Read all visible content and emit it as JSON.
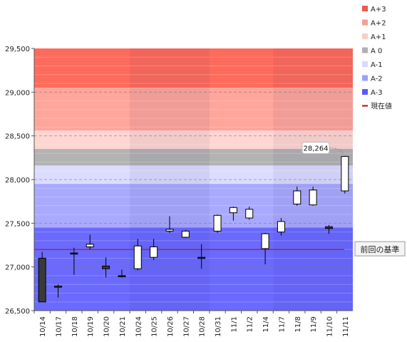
{
  "chart_data": {
    "type": "candlestick",
    "categories": [
      "10/14",
      "10/17",
      "10/18",
      "10/19",
      "10/20",
      "10/21",
      "10/24",
      "10/25",
      "10/26",
      "10/27",
      "10/28",
      "10/31",
      "11/1",
      "11/2",
      "11/4",
      "11/7",
      "11/8",
      "11/9",
      "11/10",
      "11/11"
    ],
    "ohlc": [
      {
        "open": 27100,
        "high": 27170,
        "low": 26600,
        "close": 26600
      },
      {
        "open": 26780,
        "high": 26800,
        "low": 26650,
        "close": 26770
      },
      {
        "open": 27160,
        "high": 27220,
        "low": 26910,
        "close": 27150
      },
      {
        "open": 27230,
        "high": 27370,
        "low": 27200,
        "close": 27260
      },
      {
        "open": 27010,
        "high": 27110,
        "low": 26880,
        "close": 26980
      },
      {
        "open": 26900,
        "high": 26970,
        "low": 26880,
        "close": 26890
      },
      {
        "open": 26980,
        "high": 27320,
        "low": 26960,
        "close": 27240
      },
      {
        "open": 27110,
        "high": 27320,
        "low": 27080,
        "close": 27230
      },
      {
        "open": 27410,
        "high": 27580,
        "low": 27390,
        "close": 27430
      },
      {
        "open": 27340,
        "high": 27420,
        "low": 27330,
        "close": 27410
      },
      {
        "open": 27110,
        "high": 27260,
        "low": 26980,
        "close": 27100
      },
      {
        "open": 27410,
        "high": 27600,
        "low": 27390,
        "close": 27590
      },
      {
        "open": 27620,
        "high": 27690,
        "low": 27530,
        "close": 27680
      },
      {
        "open": 27560,
        "high": 27690,
        "low": 27540,
        "close": 27660
      },
      {
        "open": 27210,
        "high": 27390,
        "low": 27030,
        "close": 27380
      },
      {
        "open": 27400,
        "high": 27560,
        "low": 27360,
        "close": 27520
      },
      {
        "open": 27720,
        "high": 27920,
        "low": 27700,
        "close": 27870
      },
      {
        "open": 27710,
        "high": 27920,
        "low": 27700,
        "close": 27880
      },
      {
        "open": 27460,
        "high": 27480,
        "low": 27380,
        "close": 27440
      },
      {
        "open": 27870,
        "high": 28270,
        "low": 27840,
        "close": 28264
      }
    ],
    "ylim": [
      26500,
      29500
    ],
    "yticks": [
      26500,
      27000,
      27500,
      28000,
      28500,
      29000,
      29500
    ],
    "ytick_labels": [
      "26,500",
      "27,000",
      "27,500",
      "28,000",
      "28,500",
      "29,000",
      "29,500"
    ],
    "bands": [
      {
        "name": "A+3",
        "from": 29050,
        "to": 29500,
        "color": "#ff6b5b"
      },
      {
        "name": "A+2",
        "from": 28560,
        "to": 29050,
        "color": "#ffa59a"
      },
      {
        "name": "A+1",
        "from": 28350,
        "to": 28560,
        "color": "#ffd6d0"
      },
      {
        "name": "A 0",
        "from": 28160,
        "to": 28350,
        "color": "#b3b3b3"
      },
      {
        "name": "A-1",
        "from": 27950,
        "to": 28160,
        "color": "#dcdcff"
      },
      {
        "name": "A-2",
        "from": 27450,
        "to": 27950,
        "color": "#a9a9ff"
      },
      {
        "name": "A-3",
        "from": 26500,
        "to": 27450,
        "color": "#6a6aff"
      }
    ],
    "reference_line": {
      "name": "現在値",
      "value": 27200,
      "color": "#c00000",
      "label": "前回の基準"
    },
    "current_value": {
      "label": "28,264",
      "value": 28264
    },
    "legend": [
      {
        "name": "A+3",
        "color": "#ee5a50",
        "type": "box"
      },
      {
        "name": "A+2",
        "color": "#f3a090",
        "type": "box"
      },
      {
        "name": "A+1",
        "color": "#f8cfc8",
        "type": "box"
      },
      {
        "name": "A 0",
        "color": "#b0b0b0",
        "type": "box"
      },
      {
        "name": "A-1",
        "color": "#d8d8ff",
        "type": "box"
      },
      {
        "name": "A-2",
        "color": "#9aa0ff",
        "type": "box"
      },
      {
        "name": "A-3",
        "color": "#5a5aff",
        "type": "box"
      },
      {
        "name": "現在値",
        "color": "#c00000",
        "type": "line"
      }
    ],
    "legend_position": "top-right"
  }
}
